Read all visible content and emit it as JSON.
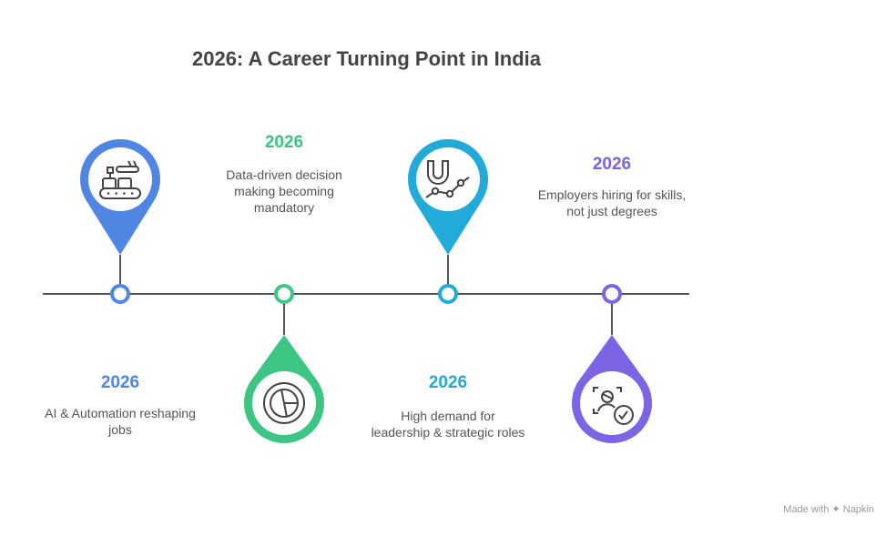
{
  "title": "2026: A Career Turning Point in India",
  "timeline_color": "#555555",
  "milestones": [
    {
      "year": "2026",
      "text": "AI & Automation reshaping jobs",
      "color": "#4F86E4",
      "icon": "robot-arm-conveyor-icon",
      "pin": "up"
    },
    {
      "year": "2026",
      "text": "Data-driven decision making becoming mandatory",
      "color": "#3CC583",
      "icon": "pie-chart-icon",
      "pin": "down"
    },
    {
      "year": "2026",
      "text": "High demand for leadership & strategic roles",
      "color": "#22AAD8",
      "icon": "magnet-chart-icon",
      "pin": "up"
    },
    {
      "year": "2026",
      "text": "Employers hiring for skills, not just degrees",
      "color": "#7D64E4",
      "icon": "person-check-icon",
      "pin": "down"
    }
  ],
  "credit": "Made with ✦ Napkin"
}
